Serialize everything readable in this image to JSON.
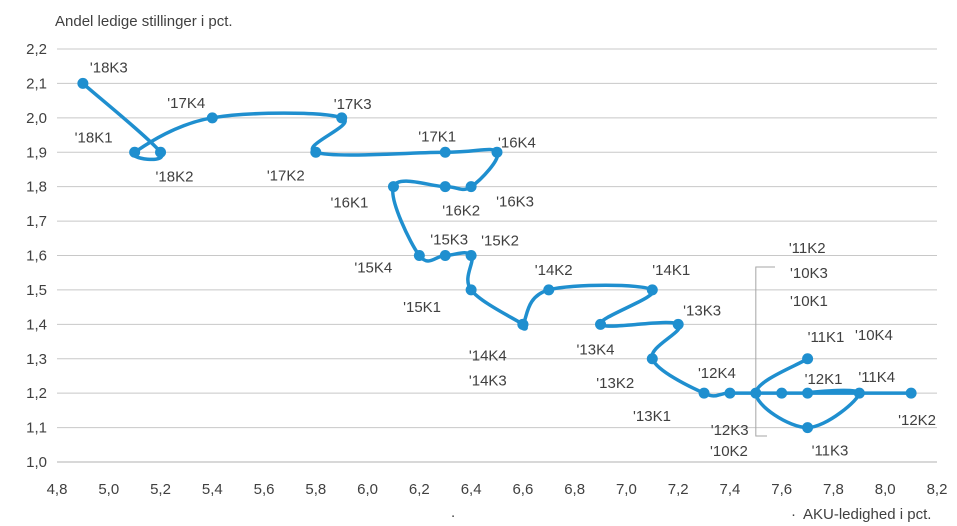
{
  "chart_data": {
    "type": "line",
    "ylabel": "Andel ledige stillinger i pct.",
    "xlabel": "AKU-ledighed i pct.",
    "xlim": [
      4.8,
      8.2
    ],
    "ylim": [
      1.0,
      2.2
    ],
    "x_ticks": [
      "4,8",
      "5,0",
      "5,2",
      "5,4",
      "5,6",
      "5,8",
      "6,0",
      "6,2",
      "6,4",
      "6,6",
      "6,8",
      "7,0",
      "7,2",
      "7,4",
      "7,6",
      "7,8",
      "8,0",
      "8,2"
    ],
    "y_ticks": [
      "1,0",
      "1,1",
      "1,2",
      "1,3",
      "1,4",
      "1,5",
      "1,6",
      "1,7",
      "1,8",
      "1,9",
      "2,0",
      "2,1",
      "2,2"
    ],
    "grid": true,
    "legend": "none",
    "color": "#1f8fcf",
    "series": [
      {
        "points": [
          {
            "x": 7.7,
            "y": 1.3,
            "label": "'11K1"
          },
          {
            "x": 7.5,
            "y": 1.2,
            "label": "'11K2"
          },
          {
            "x": 7.7,
            "y": 1.1,
            "label": "'11K3"
          },
          {
            "x": 7.9,
            "y": 1.2,
            "label": "'11K4"
          },
          {
            "x": 7.7,
            "y": 1.2,
            "label": "'12K1"
          },
          {
            "x": 8.1,
            "y": 1.2,
            "label": "'12K2"
          },
          {
            "x": 7.6,
            "y": 1.2,
            "label": "'12K3"
          },
          {
            "x": 7.4,
            "y": 1.2,
            "label": "'12K4"
          },
          {
            "x": 7.3,
            "y": 1.2,
            "label": "'13K1"
          },
          {
            "x": 7.1,
            "y": 1.3,
            "label": "'13K2"
          },
          {
            "x": 7.2,
            "y": 1.4,
            "label": "'13K3"
          },
          {
            "x": 6.9,
            "y": 1.4,
            "label": "'13K4"
          },
          {
            "x": 7.1,
            "y": 1.5,
            "label": "'14K1"
          },
          {
            "x": 6.7,
            "y": 1.5,
            "label": "'14K2"
          },
          {
            "x": 6.6,
            "y": 1.4,
            "label": "'14K3"
          },
          {
            "x": 6.6,
            "y": 1.4,
            "label": "'14K4"
          },
          {
            "x": 6.4,
            "y": 1.5,
            "label": "'15K1"
          },
          {
            "x": 6.4,
            "y": 1.6,
            "label": "'15K2"
          },
          {
            "x": 6.3,
            "y": 1.6,
            "label": "'15K3"
          },
          {
            "x": 6.2,
            "y": 1.6,
            "label": "'15K4"
          },
          {
            "x": 6.1,
            "y": 1.8,
            "label": "'16K1"
          },
          {
            "x": 6.3,
            "y": 1.8,
            "label": "'16K2"
          },
          {
            "x": 6.4,
            "y": 1.8,
            "label": "'16K3"
          },
          {
            "x": 6.5,
            "y": 1.9,
            "label": "'16K4"
          },
          {
            "x": 6.3,
            "y": 1.9,
            "label": "'17K1"
          },
          {
            "x": 5.8,
            "y": 1.9,
            "label": "'17K2"
          },
          {
            "x": 5.9,
            "y": 2.0,
            "label": "'17K3"
          },
          {
            "x": 5.4,
            "y": 2.0,
            "label": "'17K4"
          },
          {
            "x": 5.1,
            "y": 1.9,
            "label": "'18K1"
          },
          {
            "x": 5.2,
            "y": 1.9,
            "label": "'18K2"
          },
          {
            "x": 4.9,
            "y": 2.1,
            "label": "'18K3"
          }
        ]
      }
    ],
    "callout_labels": [
      "'10K1",
      "'10K2",
      "'10K3",
      "'10K4"
    ]
  },
  "footer": {
    "dot_left": ".",
    "dot_right": "·"
  }
}
